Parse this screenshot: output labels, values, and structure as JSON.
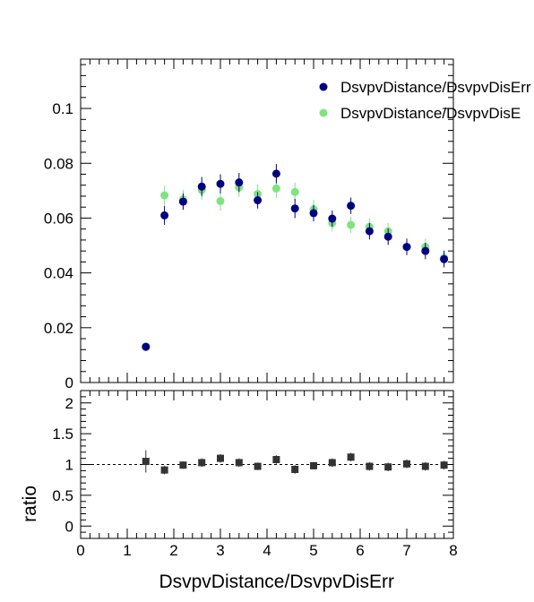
{
  "chart_data": [
    {
      "type": "scatter",
      "panel": "main",
      "xlabel": "",
      "ylabel": "",
      "xlim": [
        0,
        8
      ],
      "ylim": [
        0,
        0.118
      ],
      "yticks": [
        0,
        0.02,
        0.04,
        0.06,
        0.08,
        0.1
      ],
      "ytick_labels": [
        "0",
        "0.02",
        "0.04",
        "0.06",
        "0.08",
        "0.1"
      ],
      "legend_position": "top-right",
      "series": [
        {
          "name": "DsvpvDistance/DsvpvDisErr",
          "color": "#000080",
          "x": [
            1.4,
            1.8,
            2.2,
            2.6,
            3.0,
            3.4,
            3.8,
            4.2,
            4.6,
            5.0,
            5.4,
            5.8,
            6.2,
            6.6,
            7.0,
            7.4,
            7.8
          ],
          "y": [
            0.013,
            0.061,
            0.066,
            0.0715,
            0.0725,
            0.073,
            0.0665,
            0.0762,
            0.0635,
            0.0618,
            0.0598,
            0.0645,
            0.0552,
            0.0532,
            0.0495,
            0.048,
            0.045
          ],
          "err": [
            0.001,
            0.0035,
            0.003,
            0.0035,
            0.0035,
            0.0035,
            0.003,
            0.0035,
            0.0035,
            0.003,
            0.003,
            0.003,
            0.003,
            0.003,
            0.003,
            0.003,
            0.003
          ]
        },
        {
          "name": "DsvpvDistance/DsvpvDisE",
          "color": "#7fe37f",
          "x": [
            1.4,
            1.8,
            2.2,
            2.6,
            3.0,
            3.4,
            3.8,
            4.2,
            4.6,
            5.0,
            5.4,
            5.8,
            6.2,
            6.6,
            7.0,
            7.4,
            7.8
          ],
          "y": [
            0.0132,
            0.0683,
            0.0668,
            0.0702,
            0.0662,
            0.0712,
            0.0688,
            0.0708,
            0.0695,
            0.0632,
            0.0582,
            0.0575,
            0.0568,
            0.0552,
            0.0495,
            0.0495,
            0.0455
          ],
          "err": [
            0.001,
            0.0035,
            0.0035,
            0.0035,
            0.0035,
            0.0035,
            0.0035,
            0.0035,
            0.0035,
            0.0035,
            0.003,
            0.003,
            0.003,
            0.003,
            0.003,
            0.003,
            0.003
          ]
        }
      ]
    },
    {
      "type": "scatter",
      "panel": "ratio",
      "xlabel": "DsvpvDistance/DsvpvDisErr",
      "ylabel": "ratio",
      "xlim": [
        0,
        8
      ],
      "ylim": [
        -0.2,
        2.2
      ],
      "yticks": [
        0,
        0.5,
        1,
        1.5,
        2
      ],
      "ytick_labels": [
        "0",
        "0.5",
        "1",
        "1.5",
        "2"
      ],
      "xticks": [
        0,
        1,
        2,
        3,
        4,
        5,
        6,
        7,
        8
      ],
      "xtick_labels": [
        "0",
        "1",
        "2",
        "3",
        "4",
        "5",
        "6",
        "7",
        "8"
      ],
      "reference_line": 1,
      "series": [
        {
          "color": "#333333",
          "x": [
            1.4,
            1.8,
            2.2,
            2.6,
            3.0,
            3.4,
            3.8,
            4.2,
            4.6,
            5.0,
            5.4,
            5.8,
            6.2,
            6.6,
            7.0,
            7.4,
            7.8
          ],
          "y": [
            1.05,
            0.91,
            0.99,
            1.03,
            1.1,
            1.03,
            0.97,
            1.08,
            0.92,
            0.98,
            1.03,
            1.12,
            0.97,
            0.96,
            1.01,
            0.97,
            0.99
          ],
          "err": [
            0.18,
            0.07,
            0.06,
            0.07,
            0.07,
            0.07,
            0.06,
            0.07,
            0.07,
            0.06,
            0.07,
            0.07,
            0.07,
            0.07,
            0.07,
            0.07,
            0.07
          ]
        }
      ]
    }
  ]
}
